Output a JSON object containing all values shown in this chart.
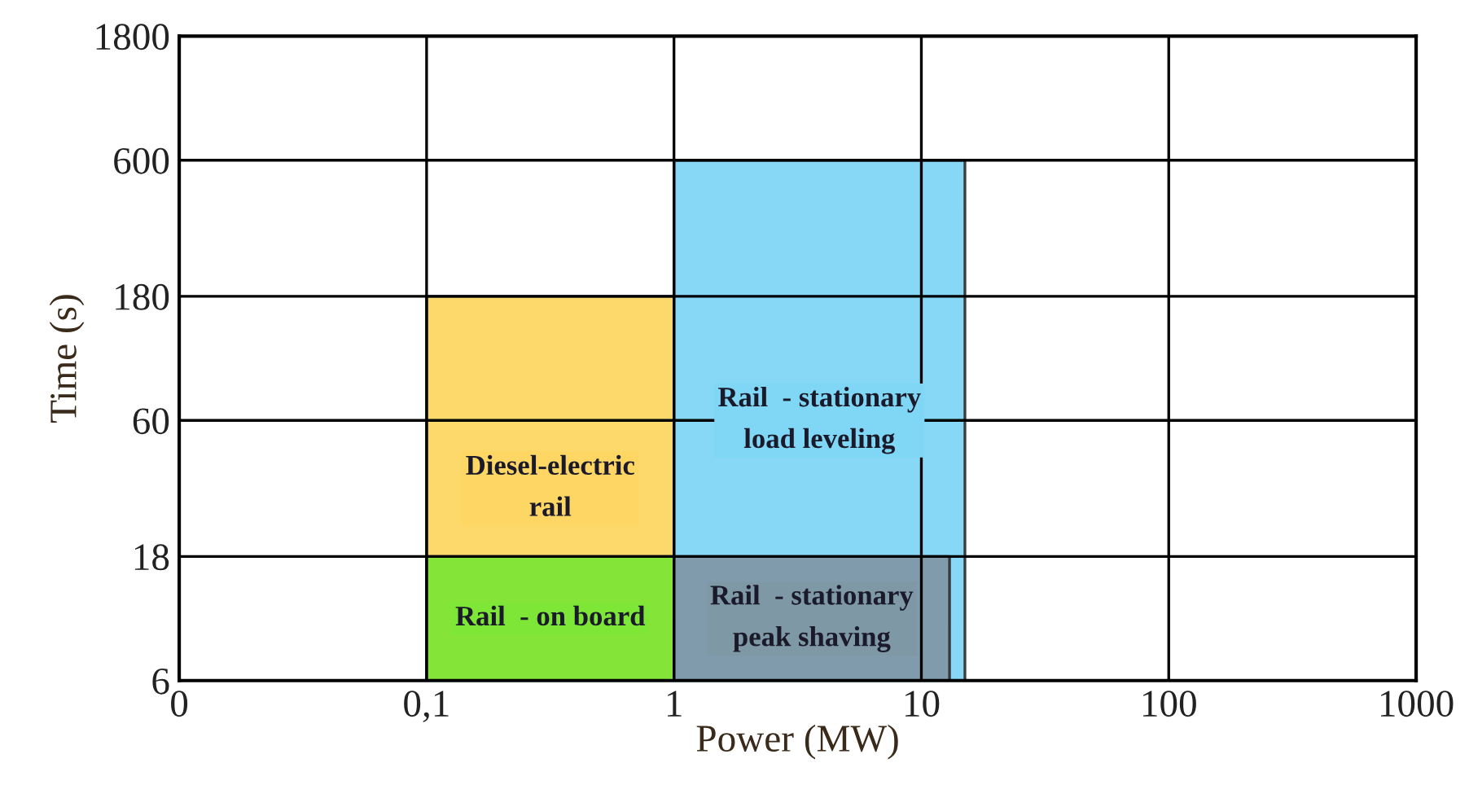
{
  "chart_data": {
    "type": "area",
    "xlabel": "Power (MW)",
    "ylabel": "Time (s)",
    "xlim": [
      0.01,
      1000
    ],
    "ylim": [
      6,
      1800
    ],
    "log": "xy",
    "xticks": [
      {
        "value": 0.01,
        "label": "0"
      },
      {
        "value": 0.1,
        "label": "0,1"
      },
      1,
      10,
      100,
      1000
    ],
    "yticks": [
      6,
      18,
      60,
      180,
      600,
      1800
    ],
    "grid": true,
    "series": [
      {
        "name": "Diesel-electric\nrail",
        "x": [
          0.1,
          1
        ],
        "values": [
          180,
          180
        ],
        "color": "#fdd663"
      },
      {
        "name": "Rail  - on board",
        "x": [
          0.1,
          1
        ],
        "values": [
          18,
          18
        ],
        "color": "#7de636"
      },
      {
        "name": "Rail  - stationary\nload leveling",
        "x": [
          1,
          15
        ],
        "values": [
          600,
          600
        ],
        "color": "#7fd6f5"
      },
      {
        "name": "Rail  - stationary\npeak shaving",
        "x": [
          1,
          13
        ],
        "values": [
          18,
          18
        ],
        "color": "#7f98a6"
      }
    ]
  }
}
